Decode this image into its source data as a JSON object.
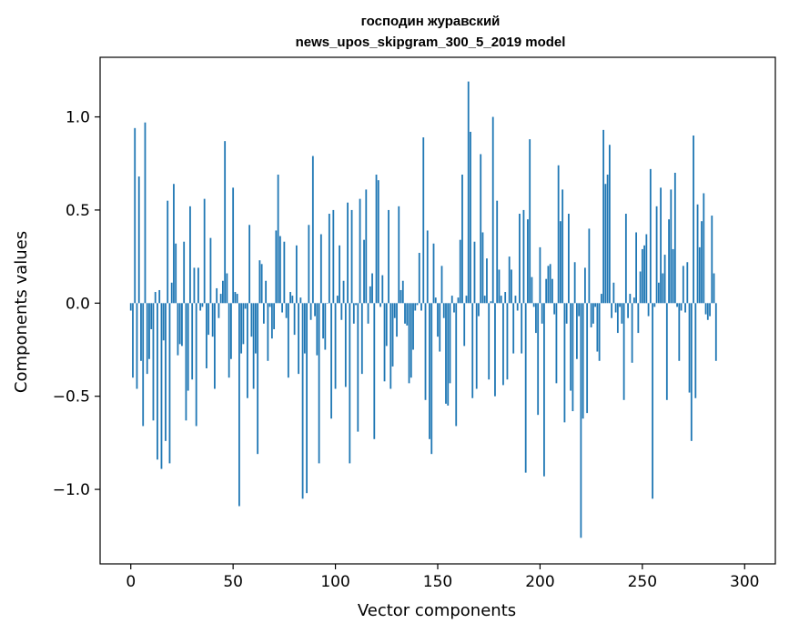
{
  "chart_data": {
    "type": "bar",
    "title_line1": "господин журавский",
    "title_line2": "news_upos_skipgram_300_5_2019 model",
    "xlabel": "Vector components",
    "ylabel": "Components values",
    "xlim": [
      -15,
      315
    ],
    "ylim": [
      -1.4,
      1.32
    ],
    "xticks": [
      0,
      50,
      100,
      150,
      200,
      250,
      300
    ],
    "xtick_labels": [
      "0",
      "50",
      "100",
      "150",
      "200",
      "250",
      "300"
    ],
    "yticks": [
      -1.0,
      -0.5,
      0.0,
      0.5,
      1.0
    ],
    "ytick_labels": [
      "−1.0",
      "−0.5",
      "0.0",
      "0.5",
      "1.0"
    ],
    "bar_color": "#1f77b4",
    "values": [
      -0.04,
      -0.4,
      0.94,
      -0.46,
      0.68,
      -0.31,
      -0.66,
      0.97,
      -0.38,
      -0.3,
      -0.14,
      -0.63,
      0.06,
      -0.84,
      0.07,
      -0.89,
      -0.2,
      -0.74,
      0.55,
      -0.86,
      0.11,
      0.64,
      0.32,
      -0.28,
      -0.22,
      -0.23,
      0.33,
      -0.63,
      -0.47,
      0.52,
      -0.41,
      0.19,
      -0.66,
      0.19,
      -0.04,
      -0.02,
      0.56,
      -0.35,
      -0.17,
      0.35,
      -0.18,
      -0.46,
      0.08,
      -0.08,
      0.05,
      0.12,
      0.87,
      0.16,
      -0.4,
      -0.3,
      0.62,
      0.06,
      0.05,
      -1.09,
      -0.27,
      -0.22,
      -0.03,
      -0.51,
      0.42,
      -0.18,
      -0.46,
      -0.27,
      -0.81,
      0.23,
      0.21,
      -0.11,
      0.12,
      -0.31,
      -0.02,
      -0.19,
      -0.14,
      0.39,
      0.69,
      0.36,
      -0.05,
      0.33,
      -0.08,
      -0.4,
      0.06,
      0.04,
      -0.17,
      0.31,
      -0.38,
      0.03,
      -1.05,
      -0.27,
      -1.02,
      0.42,
      -0.09,
      0.79,
      -0.07,
      -0.28,
      -0.86,
      0.37,
      -0.19,
      -0.25,
      0.0,
      0.48,
      -0.62,
      0.5,
      -0.46,
      0.04,
      0.31,
      -0.09,
      0.12,
      -0.45,
      0.54,
      -0.86,
      0.5,
      -0.11,
      -0.01,
      -0.69,
      0.56,
      -0.38,
      0.34,
      0.61,
      -0.11,
      0.09,
      0.16,
      -0.73,
      0.69,
      0.66,
      -0.02,
      0.15,
      -0.42,
      -0.23,
      0.5,
      -0.46,
      -0.34,
      -0.08,
      -0.18,
      0.52,
      0.07,
      0.12,
      -0.11,
      -0.12,
      -0.43,
      -0.4,
      -0.25,
      -0.04,
      -0.01,
      0.27,
      -0.04,
      0.89,
      -0.52,
      0.39,
      -0.73,
      -0.81,
      0.32,
      0.03,
      -0.18,
      -0.26,
      0.2,
      -0.08,
      -0.54,
      -0.55,
      -0.43,
      0.04,
      -0.05,
      -0.66,
      0.03,
      0.34,
      0.69,
      -0.23,
      0.04,
      1.19,
      0.92,
      -0.51,
      0.33,
      -0.46,
      -0.07,
      0.8,
      0.38,
      0.04,
      0.24,
      -0.41,
      0.01,
      1.0,
      -0.5,
      0.55,
      0.18,
      0.04,
      -0.44,
      0.06,
      -0.41,
      0.25,
      0.18,
      -0.27,
      0.04,
      -0.04,
      0.48,
      -0.27,
      0.5,
      -0.91,
      0.45,
      0.88,
      0.14,
      -0.02,
      -0.16,
      -0.6,
      0.3,
      -0.11,
      -0.93,
      0.13,
      0.2,
      0.21,
      0.13,
      -0.06,
      -0.43,
      0.74,
      0.44,
      0.61,
      -0.64,
      -0.11,
      0.48,
      -0.47,
      -0.58,
      0.22,
      -0.3,
      -0.07,
      -1.26,
      -0.62,
      0.19,
      -0.59,
      0.4,
      -0.13,
      -0.11,
      -0.02,
      -0.26,
      -0.31,
      0.05,
      0.93,
      0.64,
      0.69,
      0.85,
      -0.08,
      0.11,
      -0.05,
      -0.16,
      -0.02,
      -0.11,
      -0.52,
      0.48,
      -0.08,
      0.05,
      -0.32,
      0.03,
      0.38,
      -0.16,
      0.17,
      0.29,
      0.31,
      0.37,
      -0.07,
      0.72,
      -1.05,
      -0.02,
      0.52,
      0.11,
      0.62,
      0.16,
      0.26,
      -0.52,
      0.45,
      0.61,
      0.29,
      0.7,
      -0.02,
      -0.31,
      -0.04,
      0.2,
      -0.05,
      0.22,
      -0.48,
      -0.74,
      0.9,
      -0.51,
      0.53,
      0.3,
      0.44,
      0.59,
      -0.06,
      -0.09,
      -0.07,
      0.47,
      0.16,
      -0.31
    ]
  }
}
